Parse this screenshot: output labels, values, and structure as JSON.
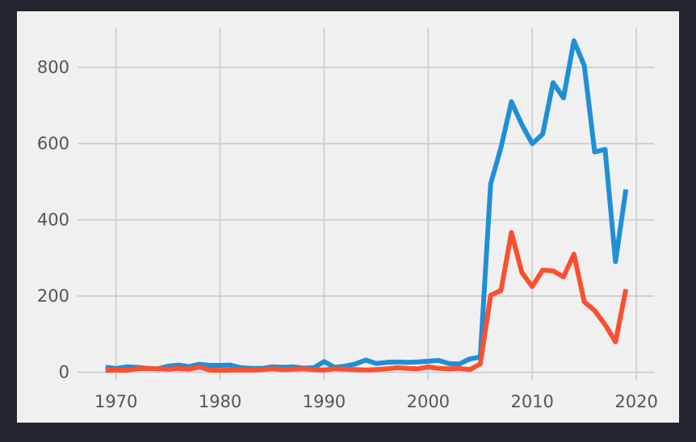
{
  "chart_data": {
    "type": "line",
    "title": "",
    "xlabel": "",
    "ylabel": "",
    "xlim": [
      1966.3,
      2021.7
    ],
    "ylim": [
      -20,
      905
    ],
    "grid": true,
    "legend": "none",
    "x_ticks": [
      1970,
      1980,
      1990,
      2000,
      2010,
      2020
    ],
    "y_ticks": [
      0,
      200,
      400,
      600,
      800
    ],
    "x": [
      1969,
      1970,
      1971,
      1972,
      1973,
      1974,
      1975,
      1976,
      1977,
      1978,
      1979,
      1980,
      1981,
      1982,
      1983,
      1984,
      1985,
      1986,
      1987,
      1988,
      1989,
      1990,
      1991,
      1992,
      1993,
      1994,
      1995,
      1996,
      1997,
      1998,
      1999,
      2000,
      2001,
      2002,
      2003,
      2004,
      2005,
      2006,
      2007,
      2008,
      2009,
      2010,
      2011,
      2012,
      2013,
      2014,
      2015,
      2016,
      2017,
      2018,
      2019
    ],
    "series": [
      {
        "color": "#1f8fd6",
        "values": [
          13,
          10,
          14,
          13,
          10,
          9,
          16,
          19,
          15,
          21,
          18,
          18,
          19,
          12,
          10,
          10,
          14,
          13,
          14,
          11,
          12,
          28,
          13,
          16,
          22,
          32,
          23,
          26,
          27,
          26,
          27,
          29,
          31,
          23,
          22,
          35,
          40,
          495,
          590,
          710,
          650,
          600,
          625,
          760,
          720,
          870,
          805,
          578,
          585,
          290,
          480
        ]
      },
      {
        "color": "#fc4f30",
        "values": [
          5,
          6,
          5,
          9,
          10,
          9,
          8,
          10,
          8,
          14,
          6,
          5,
          6,
          6,
          6,
          7,
          9,
          7,
          8,
          9,
          7,
          6,
          9,
          8,
          7,
          6,
          7,
          9,
          12,
          10,
          9,
          14,
          10,
          9,
          10,
          7,
          22,
          202,
          215,
          367,
          262,
          225,
          268,
          266,
          250,
          310,
          185,
          162,
          125,
          80,
          218
        ]
      }
    ]
  }
}
